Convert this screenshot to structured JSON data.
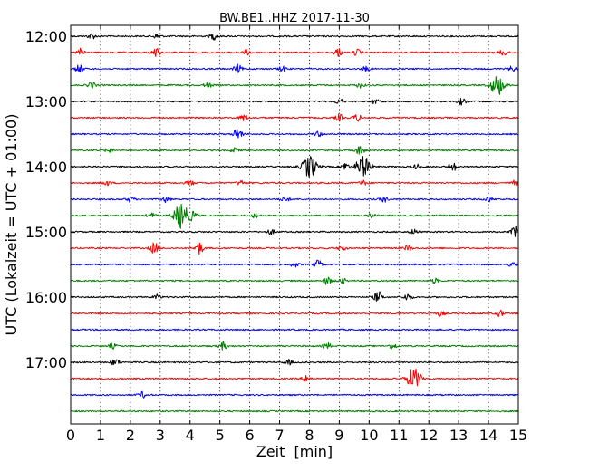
{
  "chart_data": {
    "type": "line",
    "title": "BW.BE1..HHZ 2017-11-30",
    "xlabel": "Zeit  [min]",
    "ylabel": "UTC (Lokalzeit = UTC + 01:00)",
    "xlim": [
      0,
      15
    ],
    "x_ticks": [
      0,
      1,
      2,
      3,
      4,
      5,
      6,
      7,
      8,
      9,
      10,
      11,
      12,
      13,
      14,
      15
    ],
    "y_tick_labels": [
      "12:00",
      "13:00",
      "14:00",
      "15:00",
      "16:00",
      "17:00"
    ],
    "grid": "vertical dotted",
    "trace_colors": [
      "#000000",
      "#ff0000",
      "#0000ff",
      "#008000"
    ],
    "traces": [
      {
        "start": "12:00",
        "events": [
          [
            0.7,
            0.35
          ],
          [
            2.9,
            0.3
          ],
          [
            4.8,
            0.4
          ]
        ]
      },
      {
        "start": "12:15",
        "events": [
          [
            0.35,
            0.5
          ],
          [
            2.85,
            0.6
          ],
          [
            5.9,
            0.3
          ],
          [
            8.95,
            0.5
          ],
          [
            9.6,
            0.4
          ],
          [
            14.5,
            0.4
          ]
        ]
      },
      {
        "start": "12:30",
        "events": [
          [
            0.3,
            0.5
          ],
          [
            5.6,
            0.5
          ],
          [
            7.1,
            0.3
          ],
          [
            9.9,
            0.3
          ],
          [
            14.8,
            0.3
          ]
        ]
      },
      {
        "start": "12:45",
        "events": [
          [
            0.7,
            0.4
          ],
          [
            4.6,
            0.3
          ],
          [
            9.7,
            0.3
          ],
          [
            14.3,
            1.2
          ]
        ]
      },
      {
        "start": "13:00",
        "events": [
          [
            9.0,
            0.35
          ],
          [
            10.2,
            0.3
          ],
          [
            13.1,
            0.4
          ]
        ]
      },
      {
        "start": "13:15",
        "events": [
          [
            5.8,
            0.4
          ],
          [
            9.0,
            0.4
          ],
          [
            9.6,
            0.45
          ]
        ]
      },
      {
        "start": "13:30",
        "events": [
          [
            5.6,
            0.8
          ],
          [
            8.3,
            0.3
          ]
        ]
      },
      {
        "start": "13:45",
        "events": [
          [
            1.3,
            0.3
          ],
          [
            5.5,
            0.3
          ],
          [
            9.7,
            0.6
          ]
        ]
      },
      {
        "start": "14:00",
        "events": [
          [
            8.0,
            1.4
          ],
          [
            9.2,
            0.5
          ],
          [
            9.8,
            1.3
          ],
          [
            11.6,
            0.3
          ],
          [
            12.8,
            0.6
          ]
        ]
      },
      {
        "start": "14:15",
        "events": [
          [
            1.2,
            0.3
          ],
          [
            4.0,
            0.3
          ],
          [
            5.7,
            0.3
          ],
          [
            9.8,
            0.3
          ],
          [
            14.9,
            0.3
          ]
        ]
      },
      {
        "start": "14:30",
        "events": [
          [
            2.0,
            0.3
          ],
          [
            3.2,
            0.35
          ],
          [
            7.2,
            0.3
          ],
          [
            10.5,
            0.3
          ],
          [
            14.0,
            0.3
          ]
        ]
      },
      {
        "start": "14:45",
        "events": [
          [
            2.7,
            0.3
          ],
          [
            3.7,
            1.6
          ],
          [
            4.1,
            0.5
          ],
          [
            6.2,
            0.3
          ],
          [
            10.1,
            0.3
          ]
        ]
      },
      {
        "start": "15:00",
        "events": [
          [
            6.7,
            0.3
          ],
          [
            11.5,
            0.3
          ],
          [
            14.9,
            0.7
          ]
        ]
      },
      {
        "start": "15:15",
        "events": [
          [
            2.8,
            0.7
          ],
          [
            4.3,
            0.8
          ],
          [
            9.1,
            0.3
          ],
          [
            11.3,
            0.35
          ]
        ]
      },
      {
        "start": "15:30",
        "events": [
          [
            7.5,
            0.3
          ],
          [
            8.3,
            0.5
          ],
          [
            14.8,
            0.3
          ]
        ]
      },
      {
        "start": "15:45",
        "events": [
          [
            8.6,
            0.5
          ],
          [
            9.1,
            0.35
          ],
          [
            12.2,
            0.3
          ]
        ]
      },
      {
        "start": "16:00",
        "events": [
          [
            2.9,
            0.3
          ],
          [
            10.3,
            0.4
          ],
          [
            10.3,
            0.3
          ],
          [
            11.3,
            0.45
          ]
        ]
      },
      {
        "start": "16:15",
        "events": [
          [
            12.4,
            0.3
          ],
          [
            14.4,
            0.4
          ]
        ]
      },
      {
        "start": "16:30",
        "events": []
      },
      {
        "start": "16:45",
        "events": [
          [
            1.4,
            0.3
          ],
          [
            5.1,
            0.45
          ],
          [
            8.6,
            0.35
          ],
          [
            10.8,
            0.35
          ]
        ]
      },
      {
        "start": "17:00",
        "events": [
          [
            1.5,
            0.45
          ],
          [
            7.3,
            0.3
          ]
        ]
      },
      {
        "start": "17:15",
        "events": [
          [
            7.9,
            0.5
          ],
          [
            11.5,
            1.3
          ]
        ]
      },
      {
        "start": "17:30",
        "events": [
          [
            2.4,
            0.35
          ]
        ]
      },
      {
        "start": "17:45",
        "events": []
      }
    ]
  }
}
